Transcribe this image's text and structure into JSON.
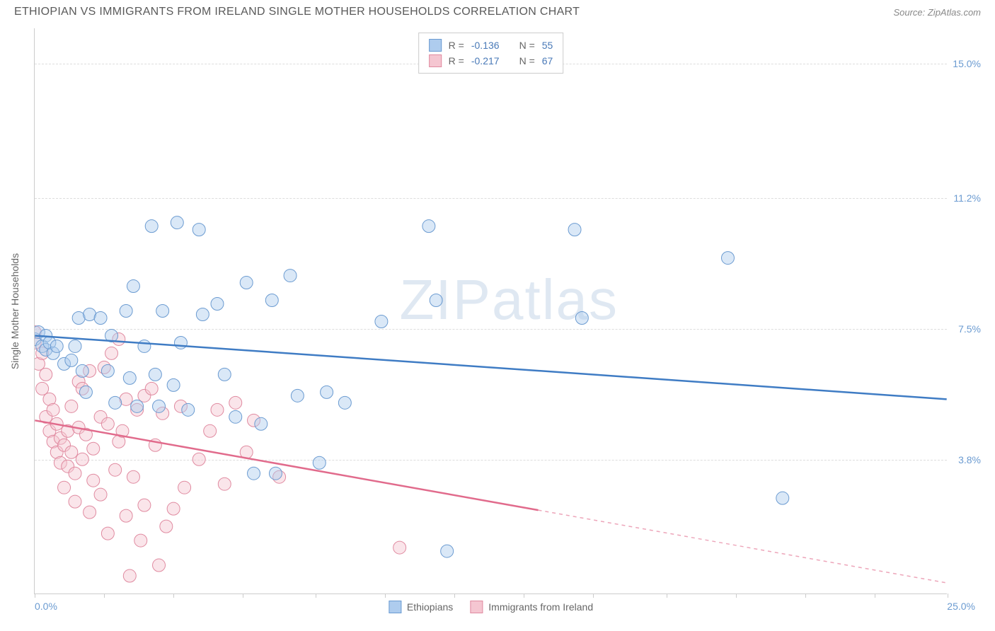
{
  "title": "ETHIOPIAN VS IMMIGRANTS FROM IRELAND SINGLE MOTHER HOUSEHOLDS CORRELATION CHART",
  "source": "Source: ZipAtlas.com",
  "watermark_a": "ZIP",
  "watermark_b": "atlas",
  "chart": {
    "type": "scatter",
    "y_label": "Single Mother Households",
    "x_min": 0.0,
    "x_max": 25.0,
    "y_min": 0.0,
    "y_max": 16.0,
    "x_origin_label": "0.0%",
    "x_max_label": "25.0%",
    "y_ticks": [
      {
        "v": 3.8,
        "label": "3.8%"
      },
      {
        "v": 7.5,
        "label": "7.5%"
      },
      {
        "v": 11.2,
        "label": "11.2%"
      },
      {
        "v": 15.0,
        "label": "15.0%"
      }
    ],
    "x_tick_positions": [
      0,
      1.9,
      3.8,
      5.7,
      7.7,
      9.6,
      11.5,
      13.4,
      15.3,
      17.3,
      19.2,
      21.1,
      23.0,
      25.0
    ],
    "background_color": "#ffffff",
    "grid_color": "#dddddd",
    "axis_color": "#cccccc",
    "point_radius": 9,
    "point_opacity": 0.45,
    "line_width": 2.5,
    "series": [
      {
        "id": "ethiopians",
        "label": "Ethiopians",
        "fill": "#aeccee",
        "stroke": "#6b9bd1",
        "line_color": "#3f7cc4",
        "R": "-0.136",
        "N": "55",
        "regression": {
          "x1": 0.0,
          "y1": 7.3,
          "x2": 25.0,
          "y2": 5.5,
          "solid_until_x": 25.0
        },
        "points": [
          [
            0.0,
            7.2
          ],
          [
            0.1,
            7.4
          ],
          [
            0.2,
            7.0
          ],
          [
            0.3,
            6.9
          ],
          [
            0.3,
            7.3
          ],
          [
            0.4,
            7.1
          ],
          [
            0.5,
            6.8
          ],
          [
            0.6,
            7.0
          ],
          [
            0.8,
            6.5
          ],
          [
            1.0,
            6.6
          ],
          [
            1.1,
            7.0
          ],
          [
            1.2,
            7.8
          ],
          [
            1.3,
            6.3
          ],
          [
            1.4,
            5.7
          ],
          [
            1.5,
            7.9
          ],
          [
            1.8,
            7.8
          ],
          [
            2.0,
            6.3
          ],
          [
            2.1,
            7.3
          ],
          [
            2.2,
            5.4
          ],
          [
            2.5,
            8.0
          ],
          [
            2.6,
            6.1
          ],
          [
            2.7,
            8.7
          ],
          [
            2.8,
            5.3
          ],
          [
            3.0,
            7.0
          ],
          [
            3.2,
            10.4
          ],
          [
            3.3,
            6.2
          ],
          [
            3.4,
            5.3
          ],
          [
            3.5,
            8.0
          ],
          [
            3.8,
            5.9
          ],
          [
            3.9,
            10.5
          ],
          [
            4.0,
            7.1
          ],
          [
            4.2,
            5.2
          ],
          [
            4.5,
            10.3
          ],
          [
            4.6,
            7.9
          ],
          [
            5.0,
            8.2
          ],
          [
            5.2,
            6.2
          ],
          [
            5.5,
            5.0
          ],
          [
            5.8,
            8.8
          ],
          [
            6.0,
            3.4
          ],
          [
            6.2,
            4.8
          ],
          [
            6.5,
            8.3
          ],
          [
            6.6,
            3.4
          ],
          [
            7.0,
            9.0
          ],
          [
            7.2,
            5.6
          ],
          [
            7.8,
            3.7
          ],
          [
            8.0,
            5.7
          ],
          [
            8.5,
            5.4
          ],
          [
            9.5,
            7.7
          ],
          [
            10.8,
            10.4
          ],
          [
            11.0,
            8.3
          ],
          [
            11.3,
            1.2
          ],
          [
            15.0,
            7.8
          ],
          [
            14.8,
            10.3
          ],
          [
            19.0,
            9.5
          ],
          [
            20.5,
            2.7
          ]
        ]
      },
      {
        "id": "ireland",
        "label": "Immigrants from Ireland",
        "fill": "#f5c6d1",
        "stroke": "#e08aa0",
        "line_color": "#e16b8c",
        "R": "-0.217",
        "N": "67",
        "regression": {
          "x1": 0.0,
          "y1": 4.9,
          "x2": 25.0,
          "y2": 0.3,
          "solid_until_x": 13.8
        },
        "points": [
          [
            0.0,
            7.1
          ],
          [
            0.0,
            7.4
          ],
          [
            0.1,
            6.5
          ],
          [
            0.2,
            6.8
          ],
          [
            0.2,
            5.8
          ],
          [
            0.3,
            6.2
          ],
          [
            0.3,
            5.0
          ],
          [
            0.4,
            4.6
          ],
          [
            0.4,
            5.5
          ],
          [
            0.5,
            4.3
          ],
          [
            0.5,
            5.2
          ],
          [
            0.6,
            4.0
          ],
          [
            0.6,
            4.8
          ],
          [
            0.7,
            3.7
          ],
          [
            0.7,
            4.4
          ],
          [
            0.8,
            4.2
          ],
          [
            0.8,
            3.0
          ],
          [
            0.9,
            4.6
          ],
          [
            0.9,
            3.6
          ],
          [
            1.0,
            5.3
          ],
          [
            1.0,
            4.0
          ],
          [
            1.1,
            3.4
          ],
          [
            1.1,
            2.6
          ],
          [
            1.2,
            4.7
          ],
          [
            1.2,
            6.0
          ],
          [
            1.3,
            3.8
          ],
          [
            1.3,
            5.8
          ],
          [
            1.4,
            4.5
          ],
          [
            1.5,
            2.3
          ],
          [
            1.5,
            6.3
          ],
          [
            1.6,
            3.2
          ],
          [
            1.6,
            4.1
          ],
          [
            1.8,
            5.0
          ],
          [
            1.8,
            2.8
          ],
          [
            1.9,
            6.4
          ],
          [
            2.0,
            4.8
          ],
          [
            2.0,
            1.7
          ],
          [
            2.1,
            6.8
          ],
          [
            2.2,
            3.5
          ],
          [
            2.3,
            4.3
          ],
          [
            2.3,
            7.2
          ],
          [
            2.4,
            4.6
          ],
          [
            2.5,
            2.2
          ],
          [
            2.5,
            5.5
          ],
          [
            2.6,
            0.5
          ],
          [
            2.7,
            3.3
          ],
          [
            2.8,
            5.2
          ],
          [
            2.9,
            1.5
          ],
          [
            3.0,
            5.6
          ],
          [
            3.0,
            2.5
          ],
          [
            3.2,
            5.8
          ],
          [
            3.3,
            4.2
          ],
          [
            3.4,
            0.8
          ],
          [
            3.5,
            5.1
          ],
          [
            3.6,
            1.9
          ],
          [
            3.8,
            2.4
          ],
          [
            4.0,
            5.3
          ],
          [
            4.1,
            3.0
          ],
          [
            4.5,
            3.8
          ],
          [
            4.8,
            4.6
          ],
          [
            5.0,
            5.2
          ],
          [
            5.2,
            3.1
          ],
          [
            5.5,
            5.4
          ],
          [
            5.8,
            4.0
          ],
          [
            6.0,
            4.9
          ],
          [
            6.7,
            3.3
          ],
          [
            10.0,
            1.3
          ]
        ]
      }
    ]
  },
  "legend": {
    "series1_label": "Ethiopians",
    "series2_label": "Immigrants from Ireland"
  },
  "stats_labels": {
    "R": "R =",
    "N": "N ="
  }
}
